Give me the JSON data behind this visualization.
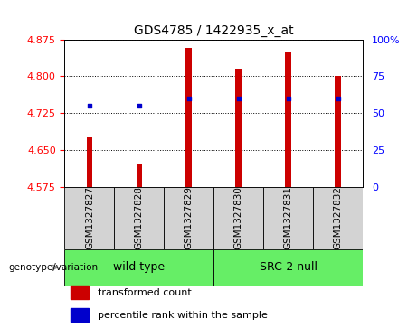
{
  "title": "GDS4785 / 1422935_x_at",
  "samples": [
    "GSM1327827",
    "GSM1327828",
    "GSM1327829",
    "GSM1327830",
    "GSM1327831",
    "GSM1327832"
  ],
  "bar_values": [
    4.675,
    4.622,
    4.857,
    4.815,
    4.85,
    4.8
  ],
  "bar_bottom": 4.575,
  "percentile_ranks": [
    55,
    55,
    60,
    60,
    60,
    60
  ],
  "ylim_left": [
    4.575,
    4.875
  ],
  "ylim_right": [
    0,
    100
  ],
  "left_ticks": [
    4.575,
    4.65,
    4.725,
    4.8,
    4.875
  ],
  "right_ticks": [
    0,
    25,
    50,
    75,
    100
  ],
  "bar_color": "#cc0000",
  "dot_color": "#0000cc",
  "grid_color": "#000000",
  "legend_items": [
    {
      "label": "transformed count",
      "color": "#cc0000"
    },
    {
      "label": "percentile rank within the sample",
      "color": "#0000cc"
    }
  ],
  "plot_bg": "#ffffff",
  "sample_label_bg": "#d3d3d3",
  "group1_label": "wild type",
  "group2_label": "SRC-2 null",
  "group_color": "#66ee66",
  "bar_width": 0.12,
  "xlabel_label": "genotype/variation"
}
